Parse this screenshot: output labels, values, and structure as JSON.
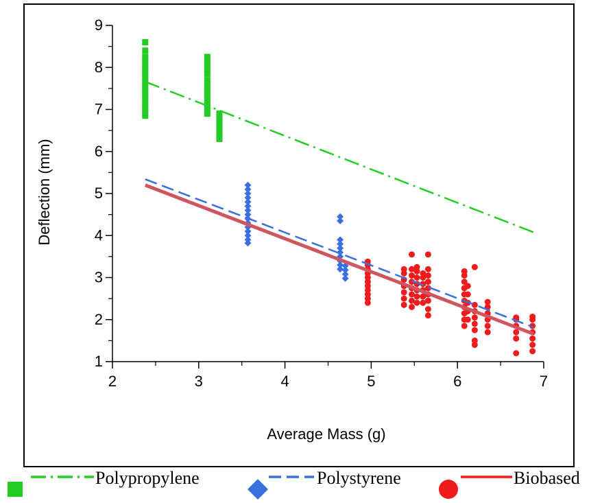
{
  "chart_data": {
    "type": "scatter",
    "xlabel": "Average Mass (g)",
    "ylabel": "Deflection (mm)",
    "xlim": [
      2,
      7
    ],
    "ylim": [
      1,
      9
    ],
    "xticks": [
      "2",
      "3",
      "4",
      "5",
      "6",
      "7"
    ],
    "yticks": [
      "1",
      "2",
      "3",
      "4",
      "5",
      "6",
      "7",
      "8",
      "9"
    ],
    "grid": false,
    "legend_position": "bottom",
    "series": [
      {
        "name": "Polypropylene",
        "color": "#22cc22",
        "marker": "square",
        "line_style": "dash-dot",
        "trendline": {
          "x": [
            2.38,
            6.88
          ],
          "y": [
            7.66,
            4.08
          ]
        },
        "points": [
          {
            "x": 2.38,
            "y": 6.85
          },
          {
            "x": 2.38,
            "y": 6.95
          },
          {
            "x": 2.38,
            "y": 7.05
          },
          {
            "x": 2.38,
            "y": 7.15
          },
          {
            "x": 2.38,
            "y": 7.25
          },
          {
            "x": 2.38,
            "y": 7.35
          },
          {
            "x": 2.38,
            "y": 7.45
          },
          {
            "x": 2.38,
            "y": 7.55
          },
          {
            "x": 2.38,
            "y": 7.65
          },
          {
            "x": 2.38,
            "y": 7.75
          },
          {
            "x": 2.38,
            "y": 7.85
          },
          {
            "x": 2.38,
            "y": 7.95
          },
          {
            "x": 2.38,
            "y": 8.05
          },
          {
            "x": 2.38,
            "y": 8.15
          },
          {
            "x": 2.38,
            "y": 8.25
          },
          {
            "x": 2.38,
            "y": 8.4
          },
          {
            "x": 2.38,
            "y": 8.6
          },
          {
            "x": 3.1,
            "y": 6.9
          },
          {
            "x": 3.1,
            "y": 7.0
          },
          {
            "x": 3.1,
            "y": 7.1
          },
          {
            "x": 3.1,
            "y": 7.2
          },
          {
            "x": 3.1,
            "y": 7.3
          },
          {
            "x": 3.1,
            "y": 7.4
          },
          {
            "x": 3.1,
            "y": 7.5
          },
          {
            "x": 3.1,
            "y": 7.6
          },
          {
            "x": 3.1,
            "y": 7.7
          },
          {
            "x": 3.1,
            "y": 7.85
          },
          {
            "x": 3.1,
            "y": 7.95
          },
          {
            "x": 3.1,
            "y": 8.05
          },
          {
            "x": 3.1,
            "y": 8.15
          },
          {
            "x": 3.1,
            "y": 8.25
          },
          {
            "x": 3.24,
            "y": 6.3
          },
          {
            "x": 3.24,
            "y": 6.4
          },
          {
            "x": 3.24,
            "y": 6.5
          },
          {
            "x": 3.24,
            "y": 6.6
          },
          {
            "x": 3.24,
            "y": 6.7
          },
          {
            "x": 3.24,
            "y": 6.8
          },
          {
            "x": 3.24,
            "y": 6.9
          }
        ]
      },
      {
        "name": "Polystyrene",
        "color": "#3a6fe0",
        "marker": "diamond",
        "line_style": "dashed",
        "trendline": {
          "x": [
            2.38,
            6.88
          ],
          "y": [
            5.34,
            1.82
          ]
        },
        "points": [
          {
            "x": 3.57,
            "y": 3.82
          },
          {
            "x": 3.57,
            "y": 3.9
          },
          {
            "x": 3.57,
            "y": 4.0
          },
          {
            "x": 3.57,
            "y": 4.1
          },
          {
            "x": 3.57,
            "y": 4.2
          },
          {
            "x": 3.57,
            "y": 4.3
          },
          {
            "x": 3.57,
            "y": 4.4
          },
          {
            "x": 3.57,
            "y": 4.5
          },
          {
            "x": 3.57,
            "y": 4.6
          },
          {
            "x": 3.57,
            "y": 4.7
          },
          {
            "x": 3.57,
            "y": 4.8
          },
          {
            "x": 3.57,
            "y": 4.9
          },
          {
            "x": 3.57,
            "y": 5.0
          },
          {
            "x": 3.57,
            "y": 5.1
          },
          {
            "x": 3.57,
            "y": 5.2
          },
          {
            "x": 4.64,
            "y": 3.2
          },
          {
            "x": 4.64,
            "y": 3.3
          },
          {
            "x": 4.64,
            "y": 3.4
          },
          {
            "x": 4.64,
            "y": 3.5
          },
          {
            "x": 4.64,
            "y": 3.6
          },
          {
            "x": 4.64,
            "y": 3.7
          },
          {
            "x": 4.64,
            "y": 3.8
          },
          {
            "x": 4.64,
            "y": 3.9
          },
          {
            "x": 4.64,
            "y": 4.35
          },
          {
            "x": 4.64,
            "y": 4.45
          },
          {
            "x": 4.7,
            "y": 2.98
          },
          {
            "x": 4.7,
            "y": 3.08
          },
          {
            "x": 4.7,
            "y": 3.18
          },
          {
            "x": 4.7,
            "y": 3.28
          }
        ]
      },
      {
        "name": "Biobased",
        "color": "#ee1c1c",
        "marker": "circle",
        "line_style": "solid",
        "line_color": "#cf5660",
        "trendline": {
          "x": [
            2.38,
            6.88
          ],
          "y": [
            5.2,
            1.66
          ]
        },
        "points": [
          {
            "x": 4.96,
            "y": 2.4
          },
          {
            "x": 4.96,
            "y": 2.5
          },
          {
            "x": 4.96,
            "y": 2.6
          },
          {
            "x": 4.96,
            "y": 2.7
          },
          {
            "x": 4.96,
            "y": 2.8
          },
          {
            "x": 4.96,
            "y": 2.9
          },
          {
            "x": 4.96,
            "y": 3.0
          },
          {
            "x": 4.96,
            "y": 3.1
          },
          {
            "x": 4.96,
            "y": 3.2
          },
          {
            "x": 4.96,
            "y": 3.3
          },
          {
            "x": 4.96,
            "y": 3.38
          },
          {
            "x": 5.38,
            "y": 2.35
          },
          {
            "x": 5.38,
            "y": 2.5
          },
          {
            "x": 5.38,
            "y": 2.65
          },
          {
            "x": 5.38,
            "y": 2.8
          },
          {
            "x": 5.38,
            "y": 2.95
          },
          {
            "x": 5.38,
            "y": 3.1
          },
          {
            "x": 5.38,
            "y": 3.2
          },
          {
            "x": 5.47,
            "y": 2.3
          },
          {
            "x": 5.47,
            "y": 2.45
          },
          {
            "x": 5.47,
            "y": 2.6
          },
          {
            "x": 5.47,
            "y": 2.75
          },
          {
            "x": 5.47,
            "y": 2.9
          },
          {
            "x": 5.47,
            "y": 3.05
          },
          {
            "x": 5.47,
            "y": 3.2
          },
          {
            "x": 5.47,
            "y": 3.55
          },
          {
            "x": 5.53,
            "y": 2.4
          },
          {
            "x": 5.53,
            "y": 2.55
          },
          {
            "x": 5.53,
            "y": 2.7
          },
          {
            "x": 5.53,
            "y": 2.85
          },
          {
            "x": 5.53,
            "y": 3.0
          },
          {
            "x": 5.53,
            "y": 3.15
          },
          {
            "x": 5.53,
            "y": 3.25
          },
          {
            "x": 5.6,
            "y": 2.4
          },
          {
            "x": 5.6,
            "y": 2.55
          },
          {
            "x": 5.6,
            "y": 2.7
          },
          {
            "x": 5.6,
            "y": 2.85
          },
          {
            "x": 5.6,
            "y": 3.0
          },
          {
            "x": 5.6,
            "y": 3.1
          },
          {
            "x": 5.66,
            "y": 2.1
          },
          {
            "x": 5.66,
            "y": 2.25
          },
          {
            "x": 5.66,
            "y": 2.45
          },
          {
            "x": 5.66,
            "y": 2.6
          },
          {
            "x": 5.66,
            "y": 2.75
          },
          {
            "x": 5.66,
            "y": 2.9
          },
          {
            "x": 5.66,
            "y": 3.05
          },
          {
            "x": 5.66,
            "y": 3.2
          },
          {
            "x": 5.66,
            "y": 3.55
          },
          {
            "x": 6.08,
            "y": 1.85
          },
          {
            "x": 6.08,
            "y": 2.0
          },
          {
            "x": 6.08,
            "y": 2.15
          },
          {
            "x": 6.08,
            "y": 2.3
          },
          {
            "x": 6.08,
            "y": 2.45
          },
          {
            "x": 6.08,
            "y": 2.6
          },
          {
            "x": 6.08,
            "y": 2.75
          },
          {
            "x": 6.08,
            "y": 2.9
          },
          {
            "x": 6.08,
            "y": 3.05
          },
          {
            "x": 6.08,
            "y": 3.15
          },
          {
            "x": 6.12,
            "y": 2.0
          },
          {
            "x": 6.12,
            "y": 2.2
          },
          {
            "x": 6.12,
            "y": 2.4
          },
          {
            "x": 6.12,
            "y": 2.6
          },
          {
            "x": 6.12,
            "y": 2.8
          },
          {
            "x": 6.2,
            "y": 1.4
          },
          {
            "x": 6.2,
            "y": 1.5
          },
          {
            "x": 6.2,
            "y": 1.75
          },
          {
            "x": 6.2,
            "y": 1.9
          },
          {
            "x": 6.2,
            "y": 2.05
          },
          {
            "x": 6.2,
            "y": 2.2
          },
          {
            "x": 6.2,
            "y": 2.35
          },
          {
            "x": 6.2,
            "y": 3.25
          },
          {
            "x": 6.35,
            "y": 1.7
          },
          {
            "x": 6.35,
            "y": 1.85
          },
          {
            "x": 6.35,
            "y": 2.0
          },
          {
            "x": 6.35,
            "y": 2.15
          },
          {
            "x": 6.35,
            "y": 2.3
          },
          {
            "x": 6.35,
            "y": 2.42
          },
          {
            "x": 6.68,
            "y": 1.2
          },
          {
            "x": 6.68,
            "y": 1.55
          },
          {
            "x": 6.68,
            "y": 1.7
          },
          {
            "x": 6.68,
            "y": 1.85
          },
          {
            "x": 6.68,
            "y": 2.0
          },
          {
            "x": 6.68,
            "y": 2.05
          },
          {
            "x": 6.87,
            "y": 1.25
          },
          {
            "x": 6.87,
            "y": 1.4
          },
          {
            "x": 6.87,
            "y": 1.55
          },
          {
            "x": 6.87,
            "y": 1.7
          },
          {
            "x": 6.87,
            "y": 1.85
          },
          {
            "x": 6.87,
            "y": 2.0
          },
          {
            "x": 6.87,
            "y": 2.07
          }
        ]
      }
    ]
  }
}
